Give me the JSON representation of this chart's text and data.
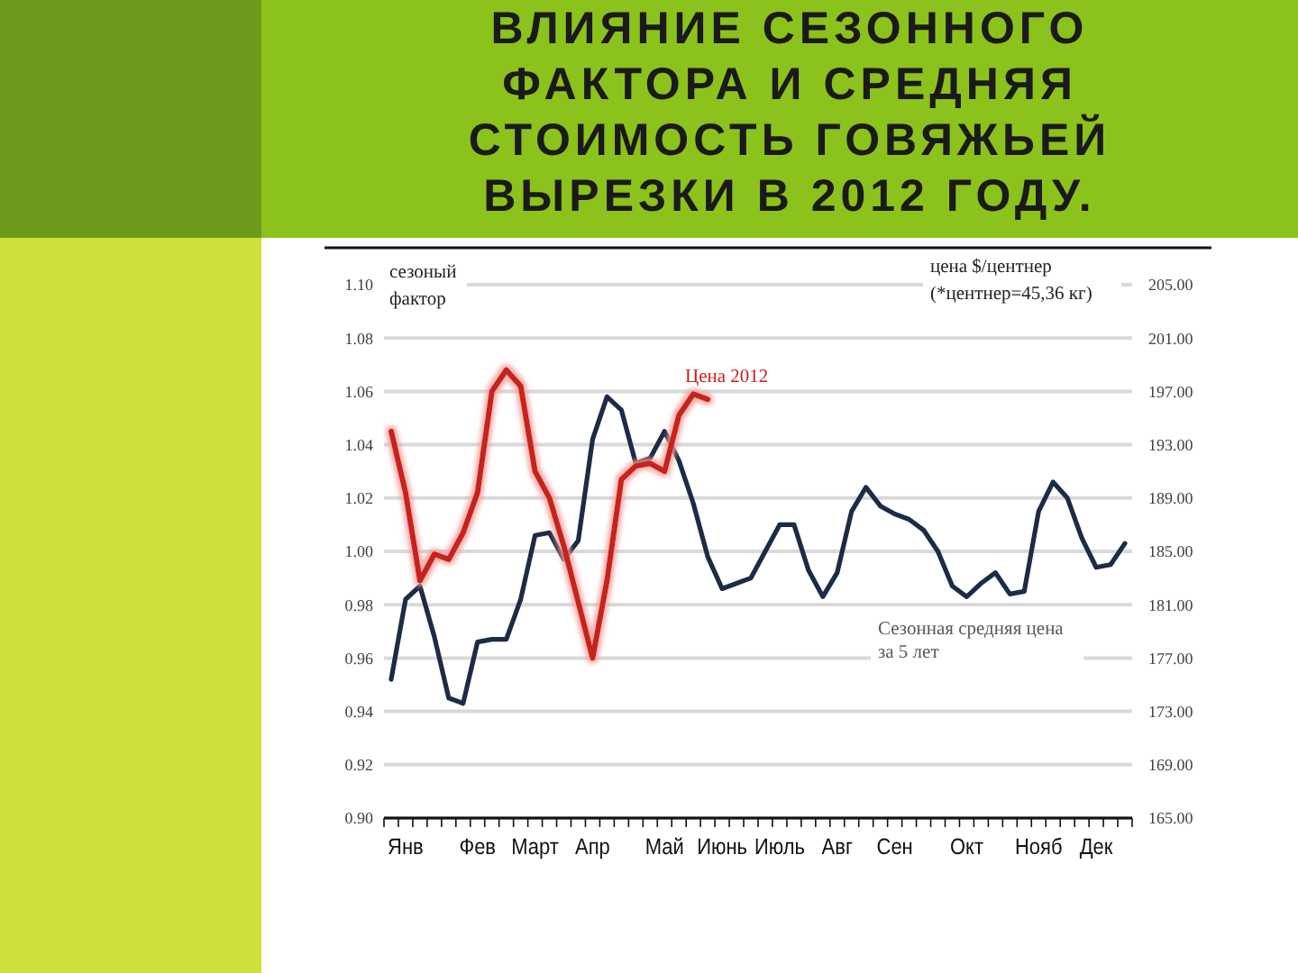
{
  "chart_data": {
    "type": "line",
    "title": "ВЛИЯНИЕ СЕЗОННОГО ФАКТОРА И СРЕДНЯЯ СТОИМОСТЬ ГОВЯЖЬЕЙ ВЫРЕЗКИ В 2012 ГОДУ.",
    "ylabel": "сезоный фактор",
    "y2label": "цена $/центнер (*центнер=45,36 кг)",
    "categories": [
      null,
      "Янв",
      null,
      null,
      null,
      null,
      "Фев",
      null,
      null,
      null,
      "Март",
      null,
      null,
      null,
      "Апр",
      null,
      null,
      null,
      null,
      "Май",
      null,
      null,
      null,
      "Июнь",
      null,
      null,
      null,
      "Июль",
      null,
      null,
      null,
      "Авг",
      null,
      null,
      null,
      "Сен",
      null,
      null,
      null,
      null,
      "Окт",
      null,
      null,
      null,
      null,
      "Нояб",
      null,
      null,
      null,
      "Дек",
      null,
      null
    ],
    "ylim": [
      0.9,
      1.1
    ],
    "yticks": [
      {
        "value": 0.9,
        "label": "0.90"
      },
      {
        "value": 0.92,
        "label": "0.92"
      },
      {
        "value": 0.94,
        "label": "0.94"
      },
      {
        "value": 0.96,
        "label": "0.96"
      },
      {
        "value": 0.98,
        "label": "0.98"
      },
      {
        "value": 1.0,
        "label": "1.00"
      },
      {
        "value": 1.02,
        "label": "1.02"
      },
      {
        "value": 1.04,
        "label": "1.04"
      },
      {
        "value": 1.06,
        "label": "1.06"
      },
      {
        "value": 1.08,
        "label": "1.08"
      },
      {
        "value": 1.1,
        "label": "1.10"
      }
    ],
    "y2lim": [
      165,
      205
    ],
    "y2ticks": [
      {
        "value": 165,
        "label": "165.00"
      },
      {
        "value": 169,
        "label": "169.00"
      },
      {
        "value": 173,
        "label": "173.00"
      },
      {
        "value": 177,
        "label": "177.00"
      },
      {
        "value": 181,
        "label": "181.00"
      },
      {
        "value": 185,
        "label": "185.00"
      },
      {
        "value": 189,
        "label": "189.00"
      },
      {
        "value": 193,
        "label": "193.00"
      },
      {
        "value": 197,
        "label": "197.00"
      },
      {
        "value": 201,
        "label": "201.00"
      },
      {
        "value": 205,
        "label": "205.00"
      }
    ],
    "grid": "y",
    "line_style": "solid",
    "series": [
      {
        "name": "Сезонная средняя цена за 5 лет",
        "color": "#1c2b46",
        "values": [
          0.952,
          0.982,
          0.987,
          0.968,
          0.945,
          0.943,
          0.966,
          0.967,
          0.967,
          0.982,
          1.006,
          1.007,
          0.997,
          1.004,
          1.042,
          1.058,
          1.053,
          1.033,
          1.035,
          1.045,
          1.034,
          1.018,
          0.998,
          0.986,
          0.988,
          0.99,
          1.0,
          1.01,
          1.01,
          0.993,
          0.983,
          0.992,
          1.015,
          1.024,
          1.017,
          1.014,
          1.012,
          1.008,
          1.0,
          0.987,
          0.983,
          0.988,
          0.992,
          0.984,
          0.985,
          1.015,
          1.026,
          1.02,
          1.005,
          0.994,
          0.995,
          1.003
        ]
      },
      {
        "name": "Цена 2012",
        "color": "#c8201e",
        "axis": "y2",
        "values": [
          194.0,
          189.4,
          182.8,
          184.8,
          184.4,
          186.4,
          189.4,
          197.0,
          198.6,
          197.4,
          191.0,
          189.0,
          185.4,
          181.2,
          177.0,
          182.8,
          190.4,
          191.4,
          191.6,
          191.0,
          195.2,
          196.8,
          196.4,
          null,
          null,
          null,
          null,
          null,
          null,
          null,
          null,
          null,
          null,
          null,
          null,
          null,
          null,
          null,
          null,
          null,
          null,
          null,
          null,
          null,
          null,
          null,
          null,
          null,
          null,
          null,
          null,
          null
        ]
      }
    ]
  }
}
